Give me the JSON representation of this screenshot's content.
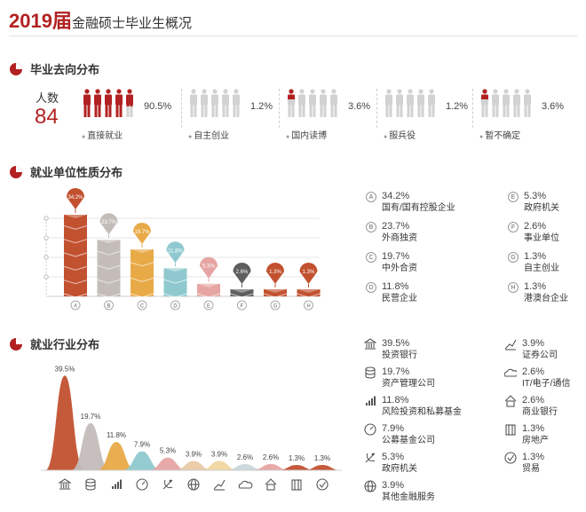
{
  "header": {
    "year": "2019届",
    "title_rest": "金融硕士毕业生概况"
  },
  "colors": {
    "accent": "#b22222",
    "grey_icon": "#d2d2d2"
  },
  "sections": {
    "destination": "毕业去向分布",
    "unit_nature": "就业单位性质分布",
    "industry": "就业行业分布"
  },
  "headcount": {
    "label": "人数",
    "value": "84"
  },
  "destinations": [
    {
      "pct": "90.5%",
      "label": "直接就业",
      "red_count": 4.5
    },
    {
      "pct": "1.2%",
      "label": "自主创业",
      "red_count": 0
    },
    {
      "pct": "3.6%",
      "label": "国内读博",
      "red_count": 0.3
    },
    {
      "pct": "1.2%",
      "label": "服兵役",
      "red_count": 0
    },
    {
      "pct": "3.6%",
      "label": "暂不确定",
      "red_count": 0.3
    }
  ],
  "chart_data": [
    {
      "type": "bar",
      "title": "就业单位性质分布",
      "categories": [
        "A",
        "B",
        "C",
        "D",
        "E",
        "F",
        "G",
        "H"
      ],
      "values": [
        34.2,
        23.7,
        19.7,
        11.8,
        5.3,
        2.6,
        1.3,
        1.3
      ],
      "data_labels": [
        "34.2%",
        "23.7%",
        "19.7%",
        "11.8%",
        "5.3%",
        "2.6%",
        "1.3%",
        "1.3%"
      ],
      "colors": [
        "#c2512f",
        "#c3bcb9",
        "#e8aa47",
        "#8fc9cf",
        "#e6a5a3",
        "#5e5e5e",
        "#c2512f",
        "#c2512f"
      ],
      "ylim": [
        0,
        40
      ],
      "grid": true,
      "legend": [
        {
          "key": "A",
          "value": "34.2%",
          "name": "国有/国有控股企业"
        },
        {
          "key": "B",
          "value": "23.7%",
          "name": "外商独资"
        },
        {
          "key": "C",
          "value": "19.7%",
          "name": "中外合资"
        },
        {
          "key": "D",
          "value": "11.8%",
          "name": "民营企业"
        },
        {
          "key": "E",
          "value": "5.3%",
          "name": "政府机关"
        },
        {
          "key": "F",
          "value": "2.6%",
          "name": "事业单位"
        },
        {
          "key": "G",
          "value": "1.3%",
          "name": "自主创业"
        },
        {
          "key": "H",
          "value": "1.3%",
          "name": "港澳台企业"
        }
      ]
    },
    {
      "type": "area",
      "title": "就业行业分布",
      "values": [
        39.5,
        19.7,
        11.8,
        7.9,
        5.3,
        3.9,
        3.9,
        2.6,
        2.6,
        1.3,
        1.3
      ],
      "data_labels": [
        "39.5%",
        "19.7%",
        "11.8%",
        "7.9%",
        "5.3%",
        "3.9%",
        "3.9%",
        "2.6%",
        "2.6%",
        "1.3%",
        "1.3%"
      ],
      "colors": [
        "#c2512f",
        "#c3bcb9",
        "#e8aa47",
        "#8fc9cf",
        "#e6a5a3",
        "#e9c9a6",
        "#f0d6a0",
        "#c8d6da",
        "#e6a5a3",
        "#c2512f",
        "#c2512f"
      ],
      "icons": [
        "bank-icon",
        "database-icon",
        "bar-chart-icon",
        "gauge-icon",
        "emblem-icon",
        "globe-icon",
        "trend-chart-icon",
        "cloud-icon",
        "home-icon",
        "building-icon",
        "check-circle-icon"
      ],
      "ylim": [
        0,
        40
      ],
      "legend": [
        {
          "value": "39.5%",
          "name": "投资银行",
          "icon": "bank-icon"
        },
        {
          "value": "19.7%",
          "name": "资产管理公司",
          "icon": "database-icon"
        },
        {
          "value": "11.8%",
          "name": "风险投资和私募基金",
          "icon": "bar-chart-icon"
        },
        {
          "value": "7.9%",
          "name": "公募基金公司",
          "icon": "gauge-icon"
        },
        {
          "value": "5.3%",
          "name": "政府机关",
          "icon": "emblem-icon"
        },
        {
          "value": "3.9%",
          "name": "其他金融服务",
          "icon": "globe-icon"
        },
        {
          "value": "3.9%",
          "name": "证券公司",
          "icon": "trend-chart-icon"
        },
        {
          "value": "2.6%",
          "name": "IT/电子/通信",
          "icon": "cloud-icon"
        },
        {
          "value": "2.6%",
          "name": "商业银行",
          "icon": "home-icon"
        },
        {
          "value": "1.3%",
          "name": "房地产",
          "icon": "building-icon"
        },
        {
          "value": "1.3%",
          "name": "贸易",
          "icon": "check-circle-icon"
        }
      ]
    }
  ]
}
